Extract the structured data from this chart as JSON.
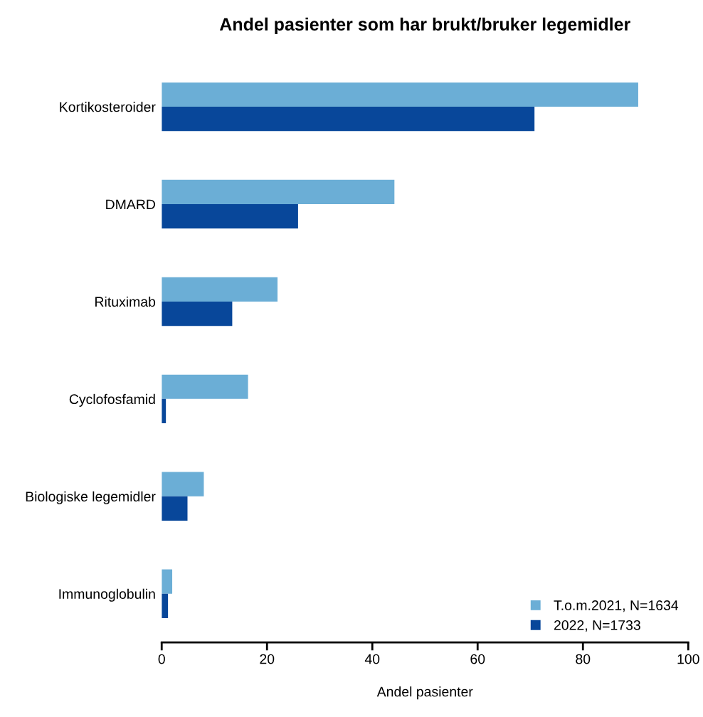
{
  "chart_data": {
    "type": "bar",
    "orientation": "horizontal",
    "title": "Andel pasienter som har brukt/bruker legemidler",
    "xlabel": "Andel pasienter",
    "categories": [
      "Kortikosteroider",
      "DMARD",
      "Rituximab",
      "Cyclofosfamid",
      "Biologiske legemidler",
      "Immunoglobulin"
    ],
    "series": [
      {
        "name": "T.o.m.2021, N=1634",
        "color": "#6baed6",
        "values": [
          90.5,
          44.2,
          22.0,
          16.4,
          8.0,
          2.0
        ]
      },
      {
        "name": "2022, N=1733",
        "color": "#08479a",
        "values": [
          70.8,
          25.9,
          13.4,
          0.8,
          4.9,
          1.2
        ]
      }
    ],
    "xlim": [
      0,
      100
    ],
    "xticks": [
      0,
      20,
      40,
      60,
      80,
      100
    ],
    "grid": false,
    "legend": "bottom right",
    "marker": "square"
  }
}
